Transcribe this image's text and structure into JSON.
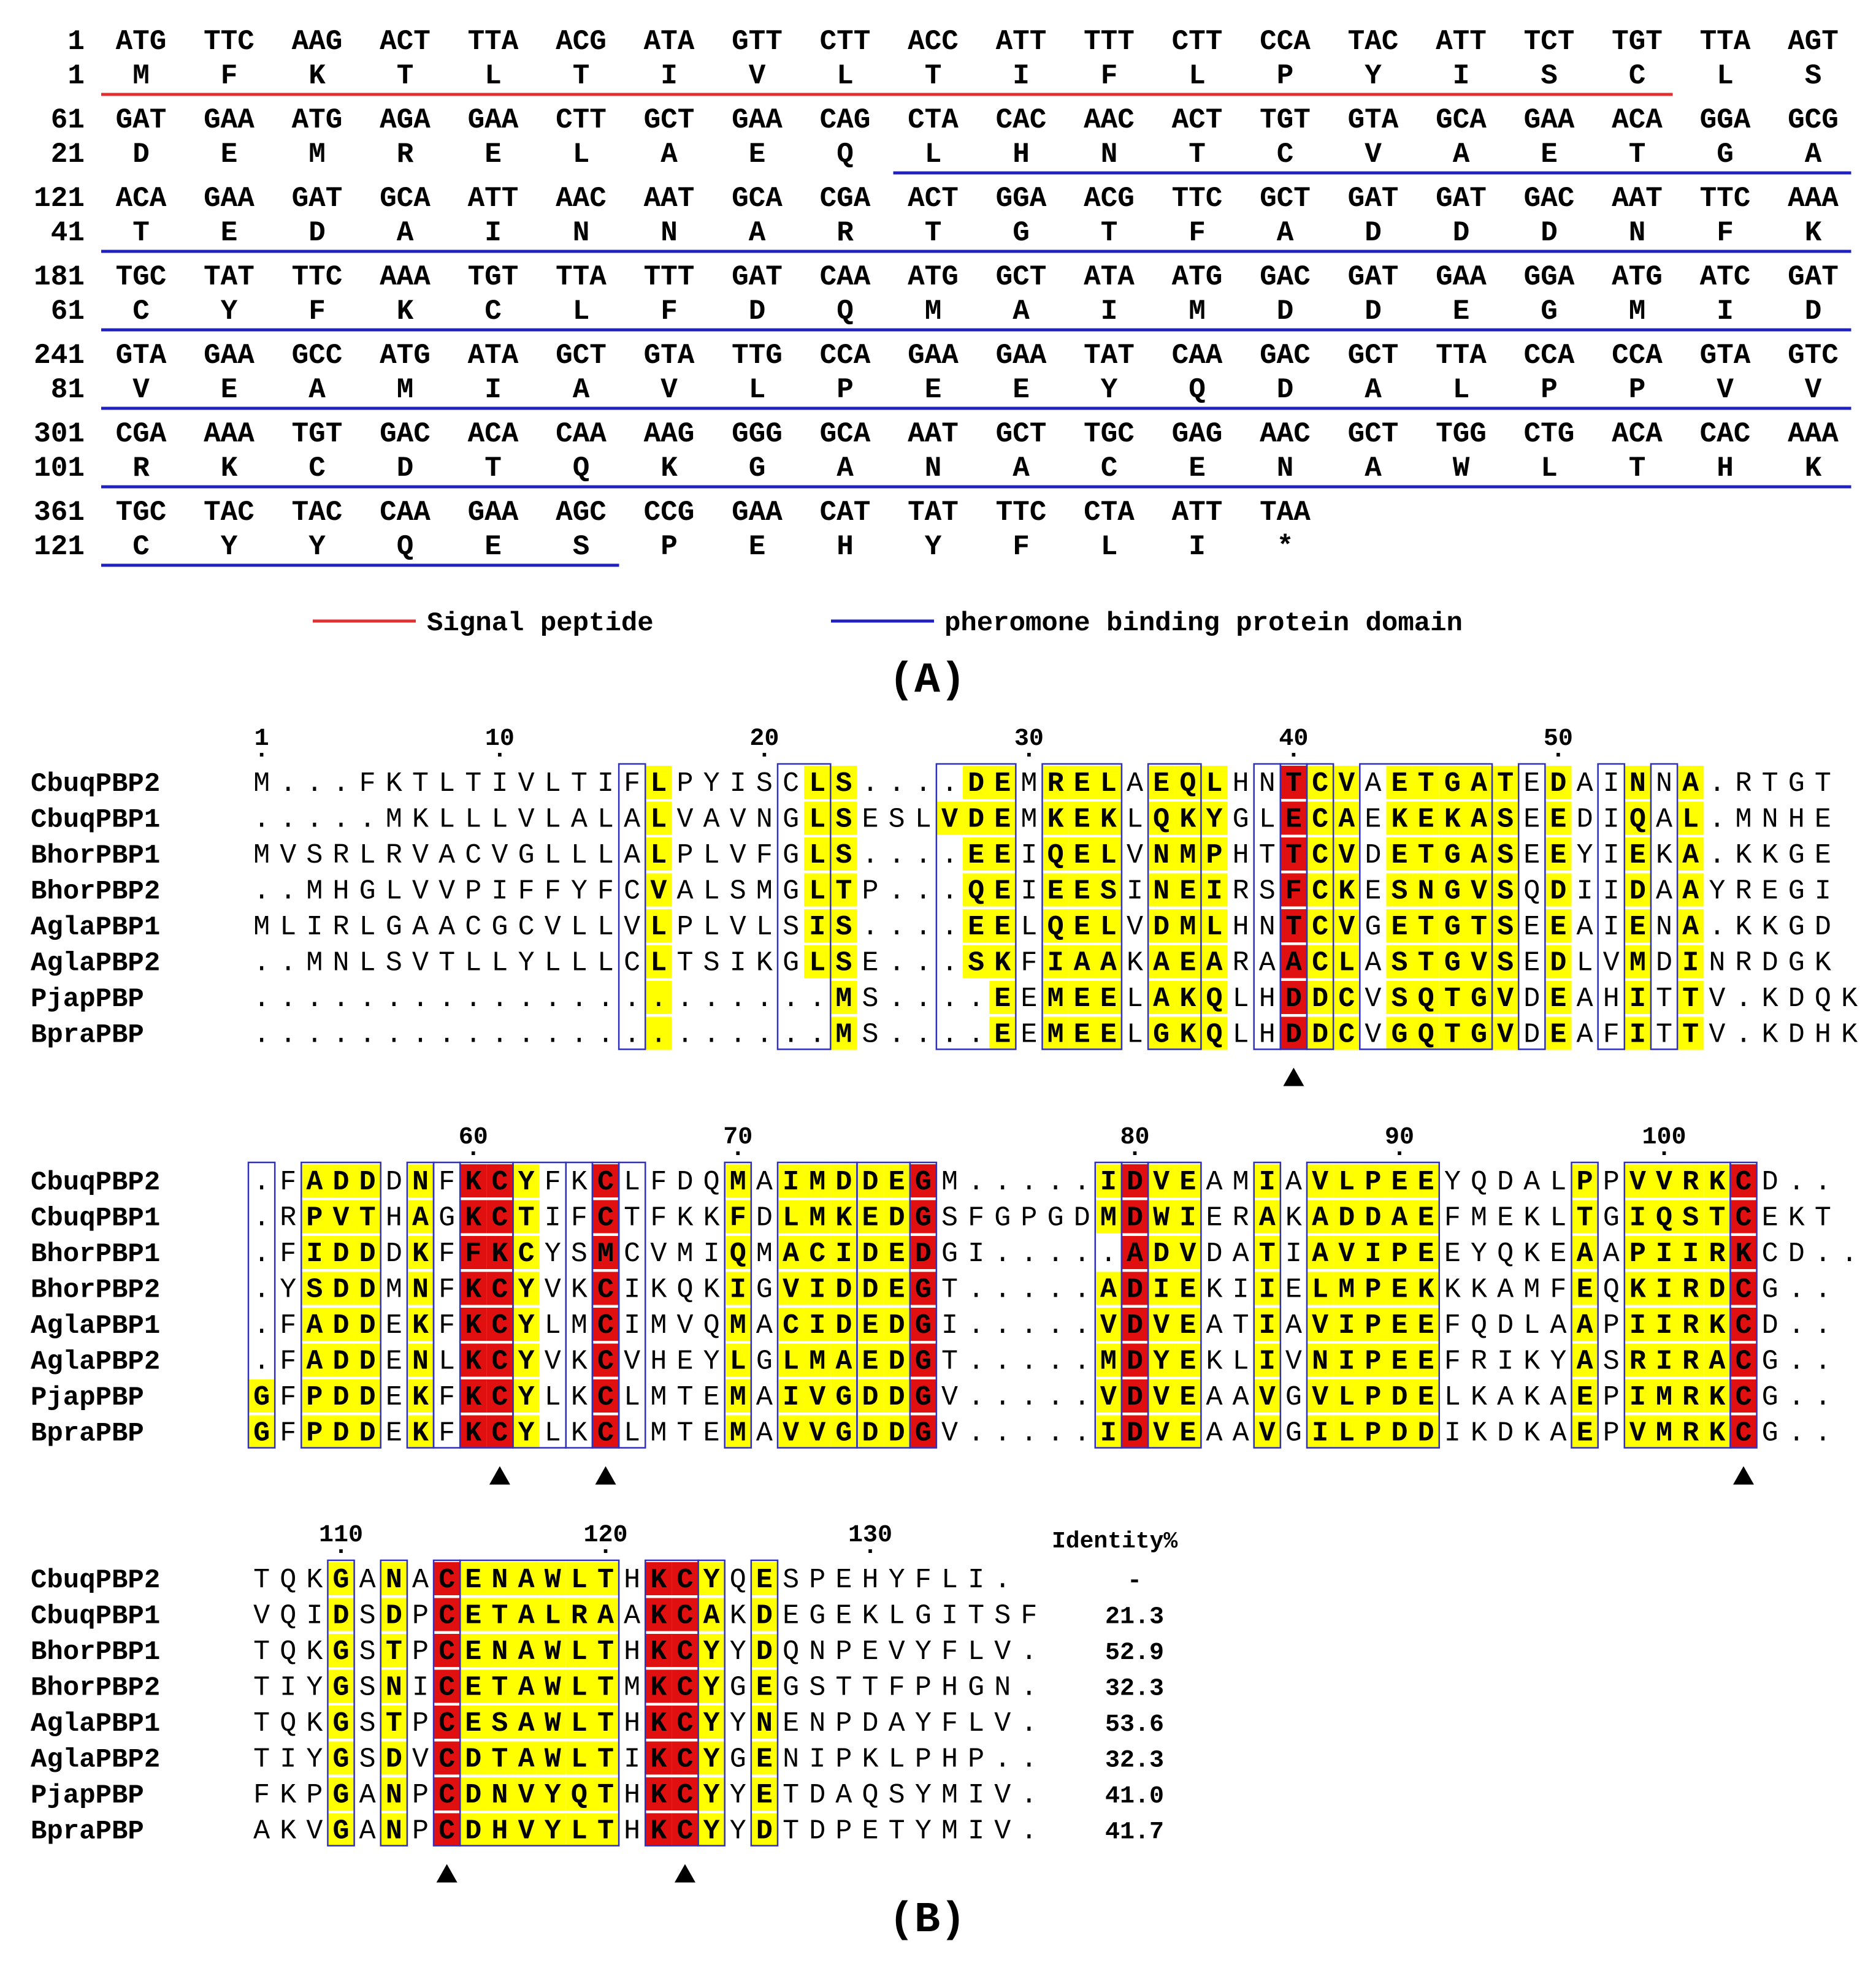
{
  "panel_a": {
    "label": "(A)",
    "nucleotide_rows": [
      {
        "nt_pos": "1",
        "aa_pos": "1",
        "codons": [
          "ATG",
          "TTC",
          "AAG",
          "ACT",
          "TTA",
          "ACG",
          "ATA",
          "GTT",
          "CTT",
          "ACC",
          "ATT",
          "TTT",
          "CTT",
          "CCA",
          "TAC",
          "ATT",
          "TCT",
          "TGT",
          "TTA",
          "AGT"
        ],
        "aas": [
          "M",
          "F",
          "K",
          "T",
          "L",
          "T",
          "I",
          "V",
          "L",
          "T",
          "I",
          "F",
          "L",
          "P",
          "Y",
          "I",
          "S",
          "C",
          "L",
          "S"
        ]
      },
      {
        "nt_pos": "61",
        "aa_pos": "21",
        "codons": [
          "GAT",
          "GAA",
          "ATG",
          "AGA",
          "GAA",
          "CTT",
          "GCT",
          "GAA",
          "CAG",
          "CTA",
          "CAC",
          "AAC",
          "ACT",
          "TGT",
          "GTA",
          "GCA",
          "GAA",
          "ACA",
          "GGA",
          "GCG"
        ],
        "aas": [
          "D",
          "E",
          "M",
          "R",
          "E",
          "L",
          "A",
          "E",
          "Q",
          "L",
          "H",
          "N",
          "T",
          "C",
          "V",
          "A",
          "E",
          "T",
          "G",
          "A"
        ]
      },
      {
        "nt_pos": "121",
        "aa_pos": "41",
        "codons": [
          "ACA",
          "GAA",
          "GAT",
          "GCA",
          "ATT",
          "AAC",
          "AAT",
          "GCA",
          "CGA",
          "ACT",
          "GGA",
          "ACG",
          "TTC",
          "GCT",
          "GAT",
          "GAT",
          "GAC",
          "AAT",
          "TTC",
          "AAA"
        ],
        "aas": [
          "T",
          "E",
          "D",
          "A",
          "I",
          "N",
          "N",
          "A",
          "R",
          "T",
          "G",
          "T",
          "F",
          "A",
          "D",
          "D",
          "D",
          "N",
          "F",
          "K"
        ]
      },
      {
        "nt_pos": "181",
        "aa_pos": "61",
        "codons": [
          "TGC",
          "TAT",
          "TTC",
          "AAA",
          "TGT",
          "TTA",
          "TTT",
          "GAT",
          "CAA",
          "ATG",
          "GCT",
          "ATA",
          "ATG",
          "GAC",
          "GAT",
          "GAA",
          "GGA",
          "ATG",
          "ATC",
          "GAT"
        ],
        "aas": [
          "C",
          "Y",
          "F",
          "K",
          "C",
          "L",
          "F",
          "D",
          "Q",
          "M",
          "A",
          "I",
          "M",
          "D",
          "D",
          "E",
          "G",
          "M",
          "I",
          "D"
        ]
      },
      {
        "nt_pos": "241",
        "aa_pos": "81",
        "codons": [
          "GTA",
          "GAA",
          "GCC",
          "ATG",
          "ATA",
          "GCT",
          "GTA",
          "TTG",
          "CCA",
          "GAA",
          "GAA",
          "TAT",
          "CAA",
          "GAC",
          "GCT",
          "TTA",
          "CCA",
          "CCA",
          "GTA",
          "GTC"
        ],
        "aas": [
          "V",
          "E",
          "A",
          "M",
          "I",
          "A",
          "V",
          "L",
          "P",
          "E",
          "E",
          "Y",
          "Q",
          "D",
          "A",
          "L",
          "P",
          "P",
          "V",
          "V"
        ]
      },
      {
        "nt_pos": "301",
        "aa_pos": "101",
        "codons": [
          "CGA",
          "AAA",
          "TGT",
          "GAC",
          "ACA",
          "CAA",
          "AAG",
          "GGG",
          "GCA",
          "AAT",
          "GCT",
          "TGC",
          "GAG",
          "AAC",
          "GCT",
          "TGG",
          "CTG",
          "ACA",
          "CAC",
          "AAA"
        ],
        "aas": [
          "R",
          "K",
          "C",
          "D",
          "T",
          "Q",
          "K",
          "G",
          "A",
          "N",
          "A",
          "C",
          "E",
          "N",
          "A",
          "W",
          "L",
          "T",
          "H",
          "K"
        ]
      },
      {
        "nt_pos": "361",
        "aa_pos": "121",
        "codons": [
          "TGC",
          "TAC",
          "TAC",
          "CAA",
          "GAA",
          "AGC",
          "CCG",
          "GAA",
          "CAT",
          "TAT",
          "TTC",
          "CTA",
          "ATT",
          "TAA"
        ],
        "aas": [
          "C",
          "Y",
          "Y",
          "Q",
          "E",
          "S",
          "P",
          "E",
          "H",
          "Y",
          "F",
          "L",
          "I",
          "*"
        ]
      }
    ],
    "legend": {
      "signal": "Signal peptide",
      "domain": "pheromone binding protein domain"
    },
    "colors": {
      "signal": "#e03030",
      "domain": "#2020c0"
    }
  },
  "panel_b": {
    "label": "(B)",
    "identity_header": "Identity%",
    "blocks": [
      {
        "ruler": [
          {
            "col": 1,
            "label": "1"
          },
          {
            "col": 10,
            "label": "10"
          },
          {
            "col": 20,
            "label": "20"
          },
          {
            "col": 30,
            "label": "30"
          },
          {
            "col": 40,
            "label": "40"
          },
          {
            "col": 50,
            "label": "50"
          }
        ],
        "seqs": [
          "M...FKTLTIVLTIFLPYISCLS....DEMRELAEQLHNTCVAETGATEDAINNA.RTGT",
          ".....MKLLLVLALALVAVNGLSESLVDEMKEKLQKYGLECAEKEKASEEDIQAL.MNHE",
          "MVSRLRVACVGLLLALPLVFGLS....EEIQELVNMPHTTCVDETGASEEYIEKA.KKGE",
          "..MHGLVVPIFFYFCVALSMGLTP...QEIEESINEIRSFCKESNGVSQDIIDAAYREGI",
          "MLIRLGAACGCVLLVLPLVLSIS....EELQELVDMLHNTCVGETGTSEEAIENA.KKGD",
          "..MNLSVTLLYLLLCLTSIKGLSE...SKFIAAKAEARAACLASTGVSEDLVMDINRDGK",
          "......................MS....EEMEELAKQLHDDCVSQTGVDEAHITTV.KDQK",
          "......................MS....EEMEELGKQLHDDCVGQTGVDEAFITTV.KDHK"
        ],
        "cons": [
          16,
          22,
          23,
          27,
          28,
          29,
          31,
          32,
          33,
          35,
          36,
          37,
          41,
          42,
          44,
          45,
          46,
          47,
          48,
          50,
          53,
          55
        ],
        "red": [
          40
        ],
        "boxes": [
          [
            15,
            15
          ],
          [
            21,
            22
          ],
          [
            27,
            29
          ],
          [
            31,
            33
          ],
          [
            35,
            36
          ],
          [
            39,
            39
          ],
          [
            40,
            40
          ],
          [
            41,
            41
          ],
          [
            43,
            47
          ],
          [
            49,
            49
          ],
          [
            52,
            52
          ],
          [
            54,
            54
          ]
        ],
        "triangles": [
          40
        ],
        "identity": []
      },
      {
        "ruler": [
          {
            "col": 9,
            "label": "60"
          },
          {
            "col": 19,
            "label": "70"
          },
          {
            "col": 34,
            "label": "80"
          },
          {
            "col": 44,
            "label": "90"
          },
          {
            "col": 54,
            "label": "100"
          }
        ],
        "seqs": [
          ".FADDDNFKCYFKCLFDQMAIMDDEGM.....IDVEAMIAVLPEEYQDALPPVVRKCD..",
          ".RPVTHAGKCTIFCTFKKFDLMKEDGSFGPGDMDWIERAKADDAEFMEKLTGIQSTCEKT",
          ".FIDDDKFFKCYSMCVMIQMACIDEDGI.....ADVDATIAVIPEEYQKEAAPIIRKCD..",
          ".YSDDMNFKCYVKCIKQKIGVIDDEGT.....ADIEKIIELMPEKKKAMFEQKIRDCG..",
          ".FADDEKFKCYLMCIMVQMACIDEDGI.....VDVEATIAVIPEEFQDLAAPIIRKCD..",
          ".FADDENLKCYVKCVHEYLGLMAEDGT.....MDYEKLIVNIPEEFRIKYASRIRACG..",
          "GFPDDEKFKCYLKCLMTEMAIVGDDGV.....VDVEAAVGVLPDELKAKAEPIMRKCG..",
          "GFPDDEKFKCYLKCLMTEMAVVGDDGV.....IDVEAAVGILPDDIKDKAEPVMRKCG.."
        ],
        "cons": [
          1,
          3,
          4,
          5,
          7,
          10,
          11,
          14,
          19,
          21,
          22,
          23,
          24,
          25,
          33,
          35,
          36,
          39,
          41,
          42,
          43,
          44,
          45,
          51,
          53,
          54,
          55,
          56
        ],
        "red": [
          9,
          10,
          14,
          26,
          34,
          57
        ],
        "boxes": [
          [
            1,
            1
          ],
          [
            3,
            5
          ],
          [
            7,
            7
          ],
          [
            8,
            8
          ],
          [
            9,
            10
          ],
          [
            11,
            12
          ],
          [
            13,
            13
          ],
          [
            14,
            14
          ],
          [
            15,
            15
          ],
          [
            19,
            19
          ],
          [
            21,
            23
          ],
          [
            24,
            25
          ],
          [
            26,
            26
          ],
          [
            33,
            33
          ],
          [
            34,
            34
          ],
          [
            35,
            36
          ],
          [
            39,
            39
          ],
          [
            41,
            45
          ],
          [
            51,
            51
          ],
          [
            53,
            56
          ],
          [
            57,
            57
          ]
        ],
        "triangles": [
          10,
          14,
          57
        ],
        "identity": []
      },
      {
        "ruler": [
          {
            "col": 4,
            "label": "110"
          },
          {
            "col": 14,
            "label": "120"
          },
          {
            "col": 24,
            "label": "130"
          }
        ],
        "seqs": [
          "TQKGANACENAWLTHKCYQESPEHYFLI.",
          "VQIDSDPCETALRAAKCAKDEGEKLGITSF",
          "TQKGSTPCENAWLTHKCYYDQNPEVYFLV.",
          "TIYGSNICETAWLTMKCYGEGSTTFPHGN.",
          "TQKGSTPCESAWLTHKCYYNENPDAYFLV.",
          "TIYGSDVCDTAWLTIKCYGENIPKLPHP..",
          "FKPGANPCDNVYQTHKCYYETDAQSYMIV.",
          "AKVGANPCDHVYLTHKCYYDTDPETYMIV."
        ],
        "cons": [
          4,
          6,
          9,
          10,
          11,
          12,
          13,
          14,
          18,
          20
        ],
        "red": [
          8,
          16,
          17
        ],
        "boxes": [
          [
            4,
            4
          ],
          [
            6,
            6
          ],
          [
            8,
            8
          ],
          [
            9,
            14
          ],
          [
            16,
            17
          ],
          [
            18,
            18
          ],
          [
            20,
            20
          ]
        ],
        "triangles": [
          8,
          17
        ],
        "identity": [
          "-",
          "21.3",
          "52.9",
          "32.3",
          "53.6",
          "32.3",
          "41.0",
          "41.7"
        ]
      }
    ],
    "names": [
      "CbuqPBP2",
      "CbuqPBP1",
      "BhorPBP1",
      "BhorPBP2",
      "AglaPBP1",
      "AglaPBP2",
      "PjapPBP",
      "BpraPBP"
    ],
    "colors": {
      "highlight": "#ffff00",
      "strict": "#e01010",
      "box": "#3030c0"
    }
  }
}
